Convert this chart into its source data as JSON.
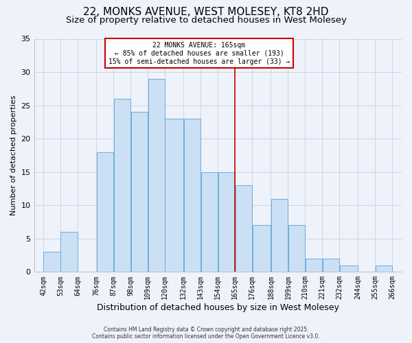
{
  "title": "22, MONKS AVENUE, WEST MOLESEY, KT8 2HD",
  "subtitle": "Size of property relative to detached houses in West Molesey",
  "xlabel": "Distribution of detached houses by size in West Molesey",
  "ylabel": "Number of detached properties",
  "bar_left_edges": [
    42,
    53,
    64,
    76,
    87,
    98,
    109,
    120,
    132,
    143,
    154,
    165,
    176,
    188,
    199,
    210,
    221,
    232,
    244,
    255
  ],
  "bar_widths": [
    11,
    11,
    12,
    11,
    11,
    11,
    11,
    12,
    11,
    11,
    11,
    11,
    12,
    11,
    11,
    11,
    11,
    12,
    11,
    11
  ],
  "bar_heights": [
    3,
    6,
    0,
    18,
    26,
    24,
    29,
    23,
    23,
    15,
    15,
    13,
    7,
    11,
    7,
    2,
    2,
    1,
    0,
    1
  ],
  "bar_color": "#cce0f5",
  "bar_edgecolor": "#6aaed6",
  "vline_x": 165,
  "vline_color": "#cc0000",
  "vline_linewidth": 1.2,
  "annotation_title": "22 MONKS AVENUE: 165sqm",
  "annotation_line1": "← 85% of detached houses are smaller (193)",
  "annotation_line2": "15% of semi-detached houses are larger (33) →",
  "annotation_box_edgecolor": "#cc0000",
  "annotation_box_facecolor": "#ffffff",
  "xtick_labels": [
    "42sqm",
    "53sqm",
    "64sqm",
    "76sqm",
    "87sqm",
    "98sqm",
    "109sqm",
    "120sqm",
    "132sqm",
    "143sqm",
    "154sqm",
    "165sqm",
    "176sqm",
    "188sqm",
    "199sqm",
    "210sqm",
    "221sqm",
    "232sqm",
    "244sqm",
    "255sqm",
    "266sqm"
  ],
  "xtick_positions": [
    42,
    53,
    64,
    76,
    87,
    98,
    109,
    120,
    132,
    143,
    154,
    165,
    176,
    188,
    199,
    210,
    221,
    232,
    244,
    255,
    266
  ],
  "ylim": [
    0,
    35
  ],
  "xlim": [
    36,
    272
  ],
  "ytick_values": [
    0,
    5,
    10,
    15,
    20,
    25,
    30,
    35
  ],
  "grid_color": "#c8d0e0",
  "background_color": "#eef2fa",
  "title_fontsize": 11,
  "subtitle_fontsize": 9.5,
  "xlabel_fontsize": 9,
  "ylabel_fontsize": 8,
  "tick_fontsize": 7,
  "footer_line1": "Contains HM Land Registry data © Crown copyright and database right 2025.",
  "footer_line2": "Contains public sector information licensed under the Open Government Licence v3.0."
}
